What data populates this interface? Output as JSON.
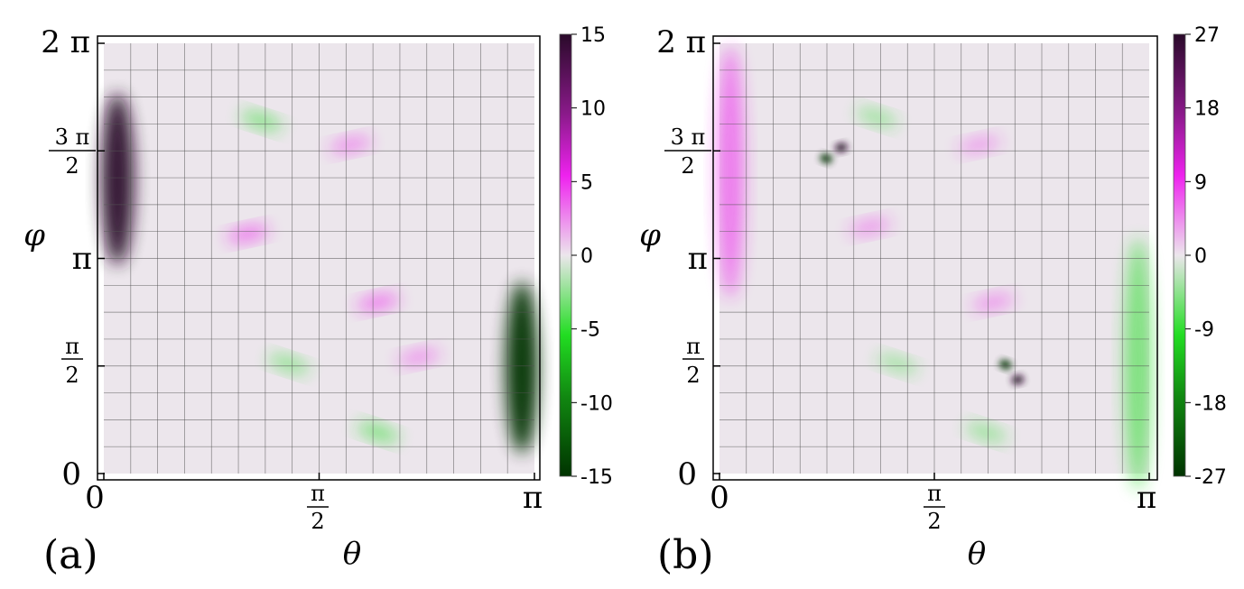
{
  "chart_data": [
    {
      "type": "heatmap",
      "panel_label": "(a)",
      "xlabel": "θ",
      "ylabel": "φ",
      "xlim": [
        0,
        3.14159
      ],
      "ylim": [
        0,
        6.28319
      ],
      "grid": true,
      "grid_divisions": {
        "x": 16,
        "y": 16
      },
      "x_ticks": [
        {
          "value": 0,
          "label": "0"
        },
        {
          "value": 1.5708,
          "label": "π/2"
        },
        {
          "value": 3.14159,
          "label": "π"
        }
      ],
      "y_ticks": [
        {
          "value": 0,
          "label": "0"
        },
        {
          "value": 1.5708,
          "label": "π/2"
        },
        {
          "value": 3.14159,
          "label": "π"
        },
        {
          "value": 4.71239,
          "label": "3π/2"
        },
        {
          "value": 6.28319,
          "label": "2π"
        }
      ],
      "colorbar": {
        "range": [
          -15,
          15
        ],
        "ticks": [
          15,
          10,
          5,
          0,
          -5,
          -10,
          -15
        ],
        "colors": {
          "low": "#003300",
          "mid_low": "#22dd22",
          "zero": "#ece6ec",
          "mid_high": "#ee22ee",
          "high": "#2a0a2a"
        }
      },
      "features": [
        {
          "theta": 0.1,
          "phi": 4.3,
          "value": 15
        },
        {
          "theta": 3.05,
          "phi": 1.55,
          "value": -15
        },
        {
          "theta": 1.15,
          "phi": 5.15,
          "value": -5
        },
        {
          "theta": 1.05,
          "phi": 3.5,
          "value": 6
        },
        {
          "theta": 1.8,
          "phi": 4.8,
          "value": 3
        },
        {
          "theta": 2.0,
          "phi": 2.5,
          "value": 6
        },
        {
          "theta": 1.35,
          "phi": 1.6,
          "value": -3
        },
        {
          "theta": 2.0,
          "phi": 0.6,
          "value": -6
        },
        {
          "theta": 2.3,
          "phi": 1.7,
          "value": 2
        }
      ]
    },
    {
      "type": "heatmap",
      "panel_label": "(b)",
      "xlabel": "θ",
      "ylabel": "φ",
      "xlim": [
        0,
        3.14159
      ],
      "ylim": [
        0,
        6.28319
      ],
      "grid": true,
      "grid_divisions": {
        "x": 16,
        "y": 16
      },
      "x_ticks": [
        {
          "value": 0,
          "label": "0"
        },
        {
          "value": 1.5708,
          "label": "π/2"
        },
        {
          "value": 3.14159,
          "label": "π"
        }
      ],
      "y_ticks": [
        {
          "value": 0,
          "label": "0"
        },
        {
          "value": 1.5708,
          "label": "π/2"
        },
        {
          "value": 3.14159,
          "label": "π"
        },
        {
          "value": 4.71239,
          "label": "3π/2"
        },
        {
          "value": 6.28319,
          "label": "2π"
        }
      ],
      "colorbar": {
        "range": [
          -27,
          27
        ],
        "ticks": [
          27,
          18,
          9,
          0,
          -9,
          -18,
          -27
        ],
        "colors": {
          "low": "#003300",
          "mid_low": "#22dd22",
          "zero": "#ece6ec",
          "mid_high": "#ee22ee",
          "high": "#2a0a2a"
        }
      },
      "features": [
        {
          "theta": 0.08,
          "phi": 4.4,
          "value": 9
        },
        {
          "theta": 3.06,
          "phi": 1.6,
          "value": -9
        },
        {
          "theta": 0.89,
          "phi": 4.76,
          "value": 27
        },
        {
          "theta": 0.78,
          "phi": 4.6,
          "value": -27
        },
        {
          "theta": 2.18,
          "phi": 1.37,
          "value": 27
        },
        {
          "theta": 2.09,
          "phi": 1.59,
          "value": -27
        },
        {
          "theta": 1.15,
          "phi": 5.2,
          "value": -3
        },
        {
          "theta": 1.1,
          "phi": 3.6,
          "value": 3
        },
        {
          "theta": 1.9,
          "phi": 4.8,
          "value": 2
        },
        {
          "theta": 2.0,
          "phi": 2.5,
          "value": 4
        },
        {
          "theta": 1.95,
          "phi": 0.6,
          "value": -4
        },
        {
          "theta": 1.3,
          "phi": 1.6,
          "value": -2
        }
      ]
    }
  ]
}
